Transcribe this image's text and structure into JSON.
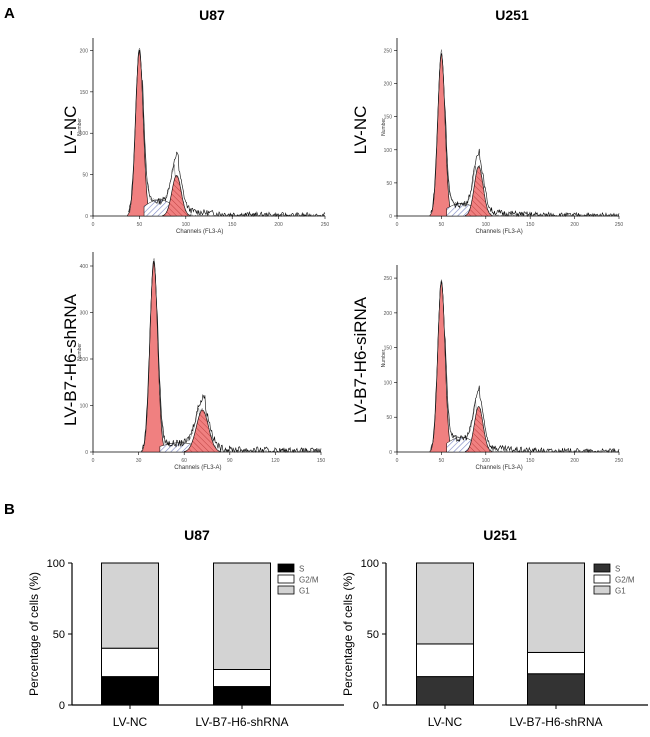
{
  "panel_a": {
    "label": "A",
    "columns": [
      {
        "title": "U87"
      },
      {
        "title": "U251"
      }
    ]
  },
  "panel_b": {
    "label": "B"
  },
  "colors": {
    "g1_peak": "#f08080",
    "overlay": "#000000",
    "s_fill_u87": "#000000",
    "s_fill_u251": "#333333",
    "g2m_fill": "#ffffff",
    "g1_fill": "#d3d3d3"
  },
  "chart_data": [
    {
      "type": "area",
      "id": "hist-u87-nc",
      "row_label": "LV-NC",
      "xlabel": "Channels (FL3-A)",
      "ylabel": "Number",
      "xticks": [
        "0",
        "50",
        "100",
        "150",
        "200",
        "250"
      ],
      "yticks": [
        "0",
        "50",
        "100",
        "150",
        "200"
      ],
      "xlim": [
        0,
        250
      ],
      "ylim": [
        0,
        220
      ],
      "g1_peak": {
        "center": 50,
        "height": 205,
        "width": 4
      },
      "g2_peak": {
        "center": 90,
        "height": 50,
        "width": 5
      },
      "s_phase": {
        "start": 55,
        "end": 88,
        "height": 20
      }
    },
    {
      "type": "area",
      "id": "hist-u251-nc",
      "row_label": "LV-NC",
      "xlabel": "Channels (FL3-A)",
      "ylabel": "Number",
      "xticks": [
        "0",
        "50",
        "100",
        "150",
        "200",
        "250"
      ],
      "yticks": [
        "0",
        "50",
        "100",
        "150",
        "200",
        "250"
      ],
      "xlim": [
        0,
        250
      ],
      "ylim": [
        0,
        280
      ],
      "g1_peak": {
        "center": 50,
        "height": 255,
        "width": 4
      },
      "g2_peak": {
        "center": 92,
        "height": 78,
        "width": 5
      },
      "s_phase": {
        "start": 56,
        "end": 89,
        "height": 20
      }
    },
    {
      "type": "area",
      "id": "hist-u87-sh",
      "row_label": "LV-B7-H6-shRNA",
      "xlabel": "Channels (FL3-A)",
      "ylabel": "Number",
      "xticks": [
        "0",
        "30",
        "60",
        "90",
        "120",
        "150"
      ],
      "yticks": [
        "0",
        "100",
        "200",
        "300",
        "400"
      ],
      "xlim": [
        0,
        150
      ],
      "ylim": [
        0,
        430
      ],
      "g1_peak": {
        "center": 40,
        "height": 410,
        "width": 2.5
      },
      "g2_peak": {
        "center": 72,
        "height": 90,
        "width": 4
      },
      "s_phase": {
        "start": 44,
        "end": 70,
        "height": 20
      }
    },
    {
      "type": "area",
      "id": "hist-u251-si",
      "row_label": "LV-B7-H6-siRNA",
      "xlabel": "Channels (FL3-A)",
      "ylabel": "Number",
      "xticks": [
        "0",
        "50",
        "100",
        "150",
        "200",
        "250"
      ],
      "yticks": [
        "0",
        "50",
        "100",
        "150",
        "200",
        "250"
      ],
      "xlim": [
        0,
        250
      ],
      "ylim": [
        0,
        280
      ],
      "g1_peak": {
        "center": 50,
        "height": 255,
        "width": 4
      },
      "g2_peak": {
        "center": 92,
        "height": 68,
        "width": 5
      },
      "s_phase": {
        "start": 56,
        "end": 89,
        "height": 22
      }
    },
    {
      "type": "bar",
      "id": "bar-u87",
      "title": "U87",
      "ylabel": "Percentage of cells (%)",
      "yticks": [
        "0",
        "50",
        "100"
      ],
      "ylim": [
        0,
        100
      ],
      "categories": [
        "LV-NC",
        "LV-B7-H6-shRNA"
      ],
      "stacked": true,
      "series": [
        {
          "name": "S",
          "values": [
            20,
            13
          ]
        },
        {
          "name": "G2/M",
          "values": [
            20,
            12
          ]
        },
        {
          "name": "G1",
          "values": [
            60,
            75
          ]
        }
      ],
      "legend": [
        "S",
        "G2/M",
        "G1"
      ],
      "legend_position": "top-right"
    },
    {
      "type": "bar",
      "id": "bar-u251",
      "title": "U251",
      "ylabel": "Percentage of cells (%)",
      "yticks": [
        "0",
        "50",
        "100"
      ],
      "ylim": [
        0,
        100
      ],
      "categories": [
        "LV-NC",
        "LV-B7-H6-shRNA"
      ],
      "stacked": true,
      "series": [
        {
          "name": "S",
          "values": [
            20,
            22
          ]
        },
        {
          "name": "G2/M",
          "values": [
            23,
            15
          ]
        },
        {
          "name": "G1",
          "values": [
            57,
            63
          ]
        }
      ],
      "legend": [
        "S",
        "G2/M",
        "G1"
      ],
      "legend_position": "top-right"
    }
  ]
}
